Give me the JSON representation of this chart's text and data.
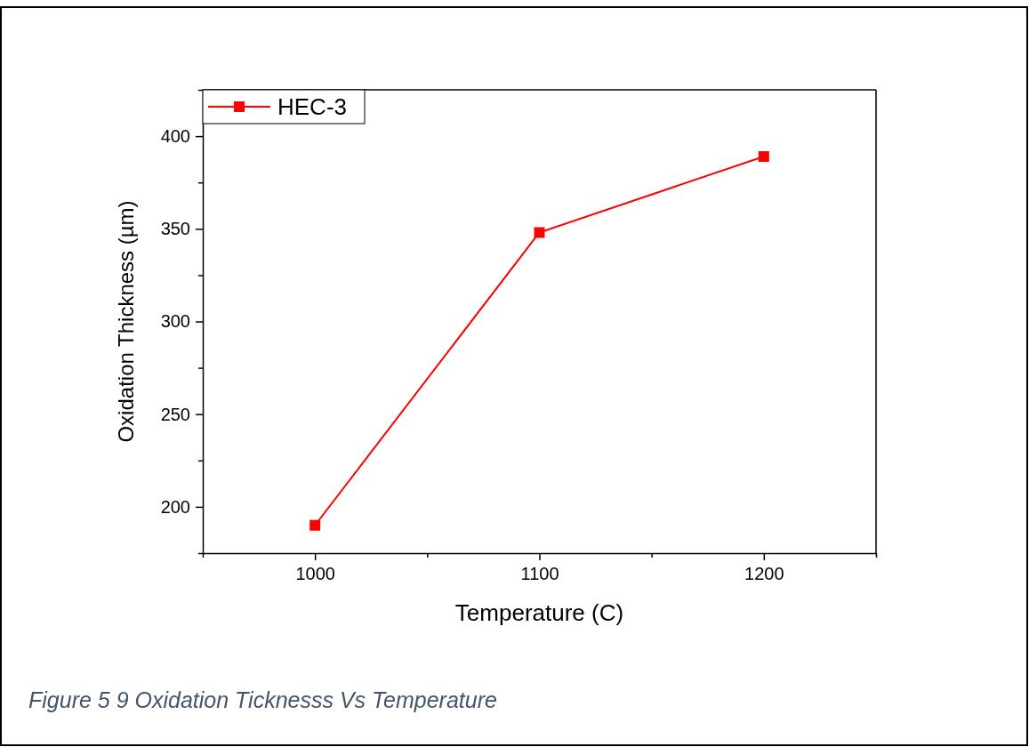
{
  "chart_data": {
    "type": "line",
    "xlabel": "Temperature (C)",
    "ylabel": "Oxidation Thickness (µm)",
    "x": [
      1000,
      1100,
      1200
    ],
    "series": [
      {
        "name": "HEC-3",
        "color": "#ff0000",
        "values": [
          190,
          348,
          389
        ]
      }
    ],
    "xlim": [
      950,
      1250
    ],
    "xticks": [
      {
        "value": 950,
        "label": null
      },
      1000,
      {
        "value": 1050,
        "label": null
      },
      1100,
      {
        "value": 1150,
        "label": null
      },
      1200,
      {
        "value": 1250,
        "label": null
      }
    ],
    "ylim": [
      175,
      425
    ],
    "yticks": [
      {
        "value": 175,
        "label": null
      },
      200,
      {
        "value": 225,
        "label": null
      },
      250,
      {
        "value": 275,
        "label": null
      },
      300,
      {
        "value": 325,
        "label": null
      },
      350,
      {
        "value": 375,
        "label": null
      },
      400,
      {
        "value": 425,
        "label": null
      }
    ],
    "marker": "square",
    "line_style": "solid",
    "legend": "top left",
    "grid": false,
    "annotations": [
      "Figure 5 9 Oxidation Ticknesss Vs Temperature"
    ]
  }
}
